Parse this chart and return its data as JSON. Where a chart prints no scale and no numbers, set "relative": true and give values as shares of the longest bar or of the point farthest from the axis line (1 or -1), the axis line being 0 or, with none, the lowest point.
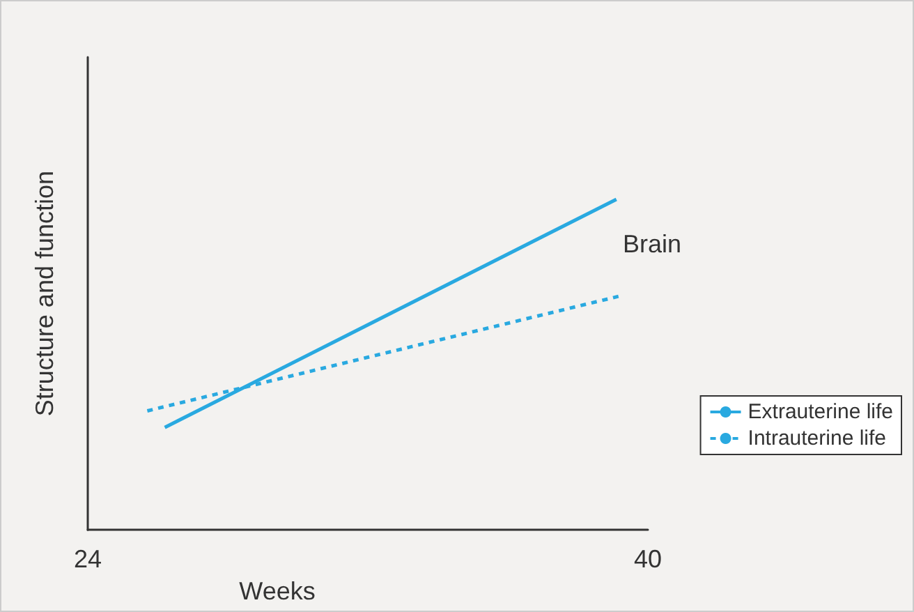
{
  "chart_data": {
    "type": "line",
    "relative": true,
    "xlabel": "Weeks",
    "ylabel": "Structure and function",
    "xlim": [
      24,
      40
    ],
    "xticks": [
      24,
      40
    ],
    "annotations": [
      "Brain"
    ],
    "legend": "bottom right",
    "grid": false,
    "marker": "none",
    "series": [
      {
        "name": "Extrauterine life",
        "color": "#29a9e0",
        "line_style": "solid",
        "x": [
          26.2,
          39.1
        ],
        "values": [
          0.31,
          1
        ]
      },
      {
        "name": "Intrauterine life",
        "color": "#29a9e0",
        "line_style": "dashed",
        "x": [
          25.7,
          39.3
        ],
        "values": [
          0.36,
          0.71
        ]
      }
    ]
  }
}
